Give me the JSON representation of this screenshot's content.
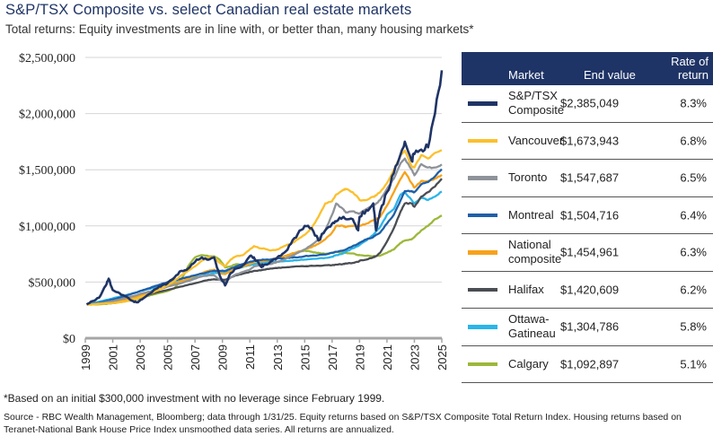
{
  "title": "S&P/TSX Composite vs. select Canadian real estate markets",
  "subtitle": "Total returns: Equity investments are in line with, or better than, many housing markets*",
  "footnote": "*Based on an initial $300,000 investment with no leverage since February 1999.",
  "source_line1": "Source - RBC Wealth Management, Bloomberg; data through 1/31/25. Equity returns based on S&P/TSX Composite Total Return Index. Housing returns based on",
  "source_line2": "Teranet-National Bank House Price Index unsmoothed data series. All returns are annualized.",
  "legend": {
    "header_market": "Market",
    "header_end_value": "End value",
    "header_rate": "Rate of return",
    "rows": [
      {
        "name": "S&P/TSX Composite",
        "end_value": "$2,385,049",
        "rate": "8.3%",
        "color": "#1f3466"
      },
      {
        "name": "Vancouver",
        "end_value": "$1,673,943",
        "rate": "6.8%",
        "color": "#fbc02d"
      },
      {
        "name": "Toronto",
        "end_value": "$1,547,687",
        "rate": "6.5%",
        "color": "#8e9399"
      },
      {
        "name": "Montreal",
        "end_value": "$1,504,716",
        "rate": "6.4%",
        "color": "#1f5fa8"
      },
      {
        "name": "National composite",
        "end_value": "$1,454,961",
        "rate": "6.3%",
        "color": "#f7a21b"
      },
      {
        "name": "Halifax",
        "end_value": "$1,420,609",
        "rate": "6.2%",
        "color": "#4a4d52"
      },
      {
        "name": "Ottawa-Gatineau",
        "end_value": "$1,304,786",
        "rate": "5.8%",
        "color": "#2bb5e8"
      },
      {
        "name": "Calgary",
        "end_value": "$1,092,897",
        "rate": "5.1%",
        "color": "#9cb83a"
      }
    ]
  },
  "chart_data": {
    "type": "line",
    "title": "S&P/TSX Composite vs. select Canadian real estate markets",
    "xlabel": "",
    "ylabel": "",
    "xlim": [
      1999,
      2025
    ],
    "ylim": [
      0,
      2500000
    ],
    "x_ticks": [
      "1999",
      "2001",
      "2003",
      "2005",
      "2007",
      "2009",
      "2011",
      "2013",
      "2015",
      "2017",
      "2019",
      "2021",
      "2023",
      "2025"
    ],
    "y_ticks": [
      "$0",
      "$500,000",
      "$1,000,000",
      "$1,500,000",
      "$2,000,000",
      "$2,500,000"
    ],
    "y_tick_values": [
      0,
      500000,
      1000000,
      1500000,
      2000000,
      2500000
    ],
    "grid": "horizontal",
    "x": [
      1999.1,
      1999.5,
      2000.0,
      2000.5,
      2000.7,
      2001.0,
      2001.5,
      2002.0,
      2002.5,
      2002.8,
      2003.0,
      2003.5,
      2004.0,
      2004.5,
      2005.0,
      2005.5,
      2006.0,
      2006.5,
      2007.0,
      2007.5,
      2008.0,
      2008.4,
      2008.8,
      2009.2,
      2009.6,
      2010.0,
      2010.5,
      2011.0,
      2011.3,
      2011.8,
      2012.0,
      2012.5,
      2013.0,
      2013.5,
      2014.0,
      2014.5,
      2015.0,
      2015.5,
      2016.0,
      2016.5,
      2017.0,
      2017.3,
      2017.8,
      2018.0,
      2018.5,
      2018.9,
      2019.0,
      2019.5,
      2020.0,
      2020.2,
      2020.5,
      2021.0,
      2021.5,
      2022.0,
      2022.3,
      2022.8,
      2023.0,
      2023.5,
      2024.0,
      2024.5,
      2025.0
    ],
    "series": [
      {
        "name": "S&P/TSX Composite",
        "values": [
          300000,
          330000,
          360000,
          470000,
          530000,
          430000,
          400000,
          370000,
          330000,
          320000,
          340000,
          380000,
          430000,
          460000,
          490000,
          540000,
          600000,
          620000,
          680000,
          720000,
          700000,
          720000,
          560000,
          470000,
          580000,
          620000,
          650000,
          730000,
          720000,
          640000,
          650000,
          680000,
          720000,
          760000,
          840000,
          930000,
          1000000,
          980000,
          870000,
          960000,
          1020000,
          1040000,
          1080000,
          1060000,
          1060000,
          960000,
          1080000,
          1140000,
          1200000,
          960000,
          1130000,
          1300000,
          1470000,
          1640000,
          1750000,
          1580000,
          1640000,
          1680000,
          1700000,
          2000000,
          2385049
        ]
      },
      {
        "name": "Vancouver",
        "values": [
          300000,
          300000,
          305000,
          310000,
          310000,
          312000,
          320000,
          330000,
          345000,
          355000,
          365000,
          385000,
          410000,
          440000,
          470000,
          510000,
          560000,
          600000,
          640000,
          690000,
          720000,
          720000,
          670000,
          640000,
          700000,
          730000,
          740000,
          790000,
          820000,
          800000,
          800000,
          780000,
          790000,
          820000,
          840000,
          880000,
          920000,
          980000,
          1080000,
          1200000,
          1220000,
          1280000,
          1320000,
          1330000,
          1300000,
          1250000,
          1230000,
          1230000,
          1260000,
          1270000,
          1300000,
          1380000,
          1500000,
          1630000,
          1670000,
          1530000,
          1520000,
          1630000,
          1600000,
          1650000,
          1673943
        ]
      },
      {
        "name": "Toronto",
        "values": [
          300000,
          302000,
          310000,
          320000,
          325000,
          330000,
          345000,
          360000,
          375000,
          385000,
          395000,
          410000,
          425000,
          440000,
          460000,
          475000,
          490000,
          510000,
          530000,
          550000,
          560000,
          560000,
          520000,
          500000,
          540000,
          570000,
          590000,
          610000,
          640000,
          650000,
          660000,
          660000,
          680000,
          700000,
          730000,
          760000,
          790000,
          830000,
          880000,
          960000,
          1100000,
          1200000,
          1150000,
          1120000,
          1130000,
          1110000,
          1110000,
          1150000,
          1180000,
          1200000,
          1230000,
          1330000,
          1420000,
          1560000,
          1600000,
          1500000,
          1450000,
          1550000,
          1520000,
          1520000,
          1547687
        ]
      },
      {
        "name": "Montreal",
        "values": [
          300000,
          305000,
          315000,
          330000,
          335000,
          345000,
          360000,
          380000,
          400000,
          410000,
          420000,
          440000,
          460000,
          480000,
          500000,
          515000,
          530000,
          545000,
          560000,
          575000,
          590000,
          600000,
          600000,
          600000,
          620000,
          640000,
          660000,
          680000,
          690000,
          695000,
          700000,
          700000,
          710000,
          710000,
          720000,
          720000,
          730000,
          735000,
          740000,
          745000,
          760000,
          770000,
          780000,
          790000,
          820000,
          840000,
          850000,
          880000,
          900000,
          920000,
          940000,
          1020000,
          1100000,
          1230000,
          1310000,
          1310000,
          1300000,
          1370000,
          1390000,
          1440000,
          1504716
        ]
      },
      {
        "name": "National composite",
        "values": [
          300000,
          302000,
          308000,
          315000,
          318000,
          322000,
          332000,
          345000,
          360000,
          370000,
          380000,
          400000,
          420000,
          440000,
          460000,
          485000,
          510000,
          530000,
          555000,
          580000,
          600000,
          610000,
          580000,
          570000,
          600000,
          625000,
          640000,
          660000,
          680000,
          685000,
          690000,
          700000,
          710000,
          730000,
          750000,
          770000,
          790000,
          810000,
          840000,
          880000,
          940000,
          1000000,
          1000000,
          990000,
          1000000,
          1000000,
          1000000,
          1020000,
          1050000,
          1060000,
          1080000,
          1180000,
          1300000,
          1420000,
          1480000,
          1380000,
          1340000,
          1400000,
          1400000,
          1420000,
          1454961
        ]
      },
      {
        "name": "Halifax",
        "values": [
          300000,
          302000,
          306000,
          312000,
          315000,
          320000,
          330000,
          340000,
          352000,
          360000,
          368000,
          385000,
          400000,
          415000,
          430000,
          445000,
          460000,
          475000,
          490000,
          505000,
          520000,
          525000,
          520000,
          520000,
          540000,
          560000,
          575000,
          590000,
          600000,
          605000,
          610000,
          620000,
          625000,
          630000,
          635000,
          640000,
          640000,
          645000,
          645000,
          650000,
          650000,
          655000,
          660000,
          665000,
          670000,
          680000,
          690000,
          700000,
          720000,
          730000,
          760000,
          860000,
          980000,
          1130000,
          1200000,
          1200000,
          1170000,
          1260000,
          1300000,
          1350000,
          1420609
        ]
      },
      {
        "name": "Ottawa-Gatineau",
        "values": [
          300000,
          310000,
          325000,
          340000,
          345000,
          355000,
          370000,
          385000,
          400000,
          410000,
          420000,
          435000,
          450000,
          465000,
          480000,
          495000,
          510000,
          525000,
          540000,
          555000,
          570000,
          580000,
          580000,
          585000,
          600000,
          620000,
          635000,
          650000,
          660000,
          665000,
          670000,
          675000,
          680000,
          685000,
          690000,
          695000,
          700000,
          705000,
          710000,
          715000,
          725000,
          740000,
          755000,
          770000,
          800000,
          820000,
          830000,
          870000,
          920000,
          950000,
          990000,
          1100000,
          1150000,
          1280000,
          1300000,
          1230000,
          1200000,
          1250000,
          1230000,
          1260000,
          1304786
        ]
      },
      {
        "name": "Calgary",
        "values": [
          300000,
          300000,
          302000,
          305000,
          308000,
          312000,
          320000,
          330000,
          340000,
          350000,
          360000,
          375000,
          390000,
          405000,
          420000,
          445000,
          520000,
          640000,
          720000,
          740000,
          730000,
          730000,
          700000,
          630000,
          640000,
          660000,
          650000,
          650000,
          660000,
          670000,
          680000,
          690000,
          710000,
          730000,
          750000,
          770000,
          780000,
          770000,
          760000,
          750000,
          760000,
          770000,
          765000,
          760000,
          755000,
          740000,
          740000,
          735000,
          730000,
          730000,
          735000,
          760000,
          790000,
          850000,
          870000,
          880000,
          900000,
          960000,
          1000000,
          1060000,
          1092897
        ]
      }
    ]
  }
}
